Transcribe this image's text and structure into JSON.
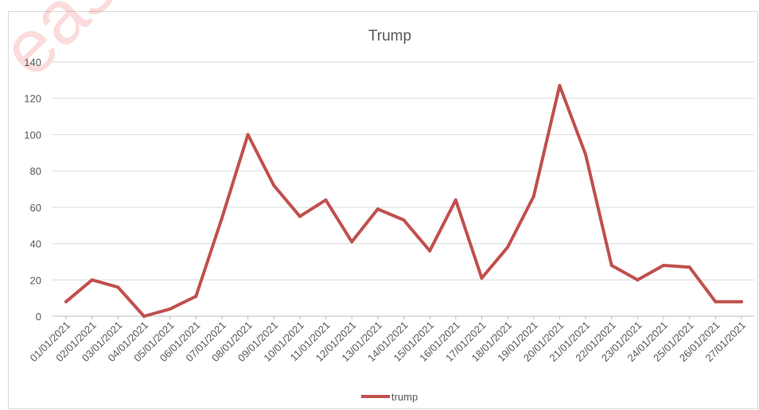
{
  "watermark": "eased under",
  "chart_data": {
    "type": "line",
    "title": "Trump",
    "xlabel": "",
    "ylabel": "",
    "ylim": [
      0,
      140
    ],
    "yticks": [
      0,
      20,
      40,
      60,
      80,
      100,
      120,
      140
    ],
    "grid": true,
    "legend_position": "bottom",
    "categories": [
      "01/01/2021",
      "02/01/2021",
      "03/01/2021",
      "04/01/2021",
      "05/01/2021",
      "06/01/2021",
      "07/01/2021",
      "08/01/2021",
      "09/01/2021",
      "10/01/2021",
      "11/01/2021",
      "12/01/2021",
      "13/01/2021",
      "14/01/2021",
      "15/01/2021",
      "16/01/2021",
      "17/01/2021",
      "18/01/2021",
      "19/01/2021",
      "20/01/2021",
      "21/01/2021",
      "22/01/2021",
      "23/01/2021",
      "24/01/2021",
      "25/01/2021",
      "26/01/2021",
      "27/01/2021"
    ],
    "series": [
      {
        "name": "trump",
        "color": "#c0504d",
        "values": [
          8,
          20,
          16,
          0,
          4,
          11,
          54,
          100,
          72,
          55,
          64,
          41,
          59,
          53,
          36,
          64,
          21,
          38,
          66,
          127,
          89,
          28,
          20,
          28,
          27,
          8,
          8
        ]
      }
    ]
  }
}
